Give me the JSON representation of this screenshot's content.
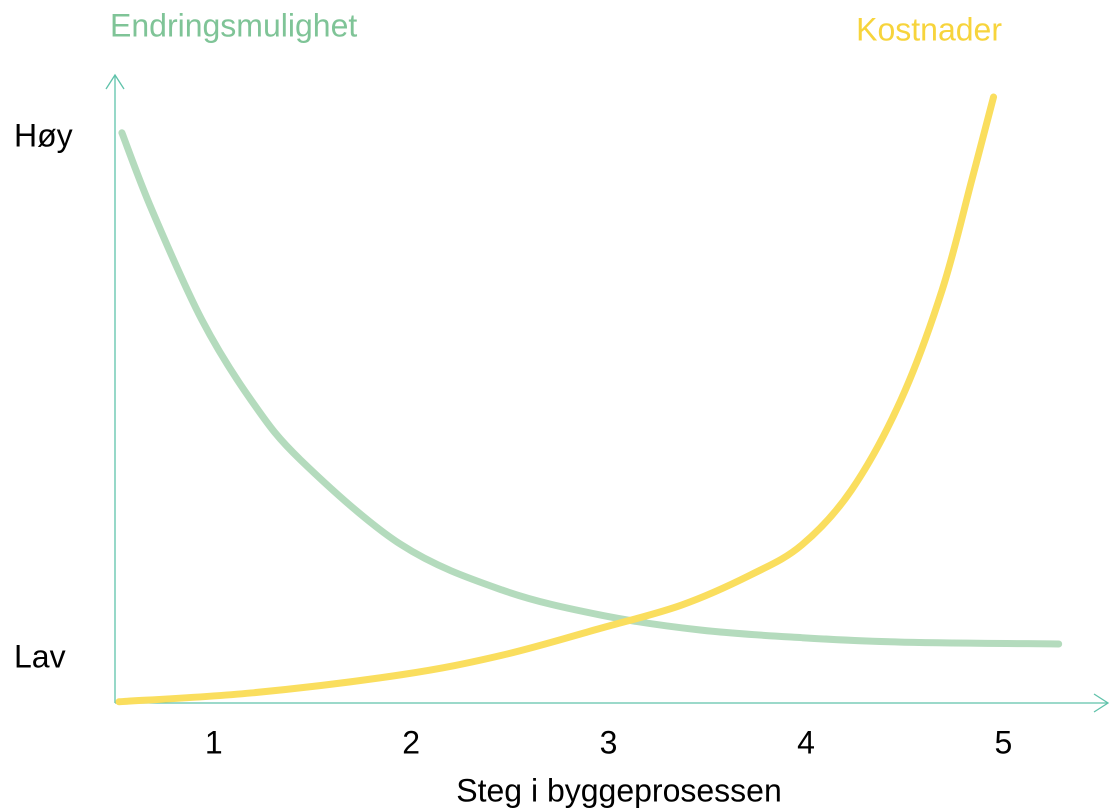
{
  "chart_data": {
    "type": "line",
    "xlabel": "Steg i byggeprosessen",
    "xlim": [
      0.5,
      5.55
    ],
    "xticks": [
      1,
      2,
      3,
      4,
      5
    ],
    "ylim": [
      0,
      100
    ],
    "yticks": [
      {
        "value": 7,
        "label": "Lav"
      },
      {
        "value": 90,
        "label": "Høy"
      }
    ],
    "grid": false,
    "axis_color": "#5fc2aa",
    "series": [
      {
        "name": "Endringsmulighet",
        "color": "#b4dbbd",
        "x": [
          0.535,
          0.687,
          0.94,
          1.19,
          1.44,
          1.95,
          2.46,
          2.96,
          3.47,
          3.98,
          4.48,
          5.28
        ],
        "values": [
          90.8,
          78.5,
          61,
          48.2,
          38.7,
          25.2,
          18,
          14,
          11.6,
          10.4,
          9.7,
          9.4
        ]
      },
      {
        "name": "Kostnader",
        "color": "#fade5e",
        "x": [
          0.52,
          1.19,
          1.95,
          2.46,
          2.96,
          3.37,
          3.72,
          3.98,
          4.23,
          4.48,
          4.69,
          4.84,
          4.95
        ],
        "values": [
          0.2,
          1.6,
          4.5,
          7.6,
          11.9,
          15.6,
          20.4,
          25.2,
          33.9,
          48.2,
          65.8,
          83.3,
          96.5
        ]
      }
    ]
  }
}
